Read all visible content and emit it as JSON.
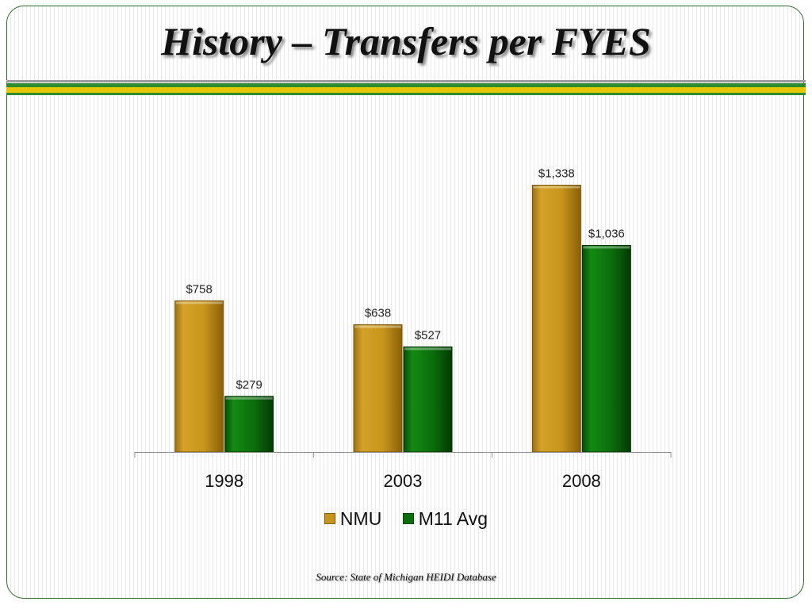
{
  "slide": {
    "title": "History – Transfers per FYES",
    "source": "Source:  State of Michigan HEIDI Database"
  },
  "colors": {
    "nmu": "#c8951a",
    "m11": "#0b6e0b",
    "border": "#2f6b2f",
    "band_green": "#2e8b2e",
    "band_yellow": "#e7c800"
  },
  "chart_data": {
    "type": "bar",
    "categories": [
      "1998",
      "2003",
      "2008"
    ],
    "series": [
      {
        "name": "NMU",
        "values": [
          758,
          638,
          1338
        ],
        "labels": [
          "$758",
          "$638",
          "$1,338"
        ]
      },
      {
        "name": "M11 Avg",
        "values": [
          279,
          527,
          1036
        ],
        "labels": [
          "$279",
          "$527",
          "$1,036"
        ]
      }
    ],
    "title": "",
    "xlabel": "",
    "ylabel": "",
    "ylim": [
      0,
      1400
    ],
    "grid": false,
    "legend_position": "bottom"
  }
}
